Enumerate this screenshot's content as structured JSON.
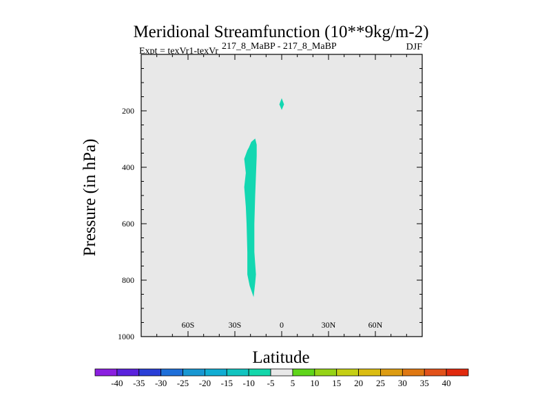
{
  "chart_data": {
    "type": "contour",
    "title": "Meridional Streamfunction (10**9kg/m-2)",
    "subtitle_left_prefix": "Expt = texVr1-texVr",
    "subtitle_center": "217_8_MaBP - 217_8_MaBP",
    "season": "DJF",
    "xlabel": "Latitude",
    "ylabel": "Pressure (in hPa)",
    "xlim": [
      -90,
      90
    ],
    "ylim": [
      1000,
      0
    ],
    "x_ticks": [
      {
        "value": -60,
        "label": "60S"
      },
      {
        "value": -30,
        "label": "30S"
      },
      {
        "value": 0,
        "label": "0"
      },
      {
        "value": 30,
        "label": "30N"
      },
      {
        "value": 60,
        "label": "60N"
      }
    ],
    "y_ticks": [
      {
        "value": 200,
        "label": "200"
      },
      {
        "value": 400,
        "label": "400"
      },
      {
        "value": 600,
        "label": "600"
      },
      {
        "value": 800,
        "label": "800"
      },
      {
        "value": 1000,
        "label": "1000"
      }
    ],
    "background_fill": "#e8e8e8",
    "contour_regions": [
      {
        "name": "lower-tropospheric-cell",
        "level_range": [
          -10,
          -5
        ],
        "color": "#13d7b1",
        "polygon": [
          [
            -17,
            298
          ],
          [
            -16,
            320
          ],
          [
            -16,
            360
          ],
          [
            -16.5,
            430
          ],
          [
            -17,
            500
          ],
          [
            -17.5,
            600
          ],
          [
            -17.5,
            700
          ],
          [
            -16.5,
            780
          ],
          [
            -17,
            810
          ],
          [
            -18,
            860
          ],
          [
            -20.5,
            820
          ],
          [
            -22,
            780
          ],
          [
            -22,
            700
          ],
          [
            -22.5,
            600
          ],
          [
            -23,
            540
          ],
          [
            -24,
            470
          ],
          [
            -23,
            420
          ],
          [
            -24,
            370
          ],
          [
            -22,
            340
          ],
          [
            -21,
            330
          ],
          [
            -19.5,
            310
          ]
        ]
      },
      {
        "name": "upper-small-cell",
        "level_range": [
          -10,
          -5
        ],
        "color": "#13d7b1",
        "polygon": [
          [
            0,
            155
          ],
          [
            1.5,
            177
          ],
          [
            0,
            197
          ],
          [
            -1.5,
            177
          ]
        ]
      }
    ],
    "colorbar": {
      "tick_labels": [
        "-40",
        "-35",
        "-30",
        "-25",
        "-20",
        "-15",
        "-10",
        "-5",
        "5",
        "10",
        "15",
        "20",
        "25",
        "30",
        "35",
        "40"
      ],
      "colors": [
        "#8b1fe0",
        "#5a22dd",
        "#2a3fd7",
        "#1e6fd9",
        "#1897d2",
        "#11add3",
        "#12c4c0",
        "#14d7ab",
        "#e8e8e8",
        "#5fd51a",
        "#95d316",
        "#c5cf14",
        "#dbbd12",
        "#dd9c12",
        "#df7812",
        "#e2521a",
        "#e12a0e"
      ]
    }
  }
}
